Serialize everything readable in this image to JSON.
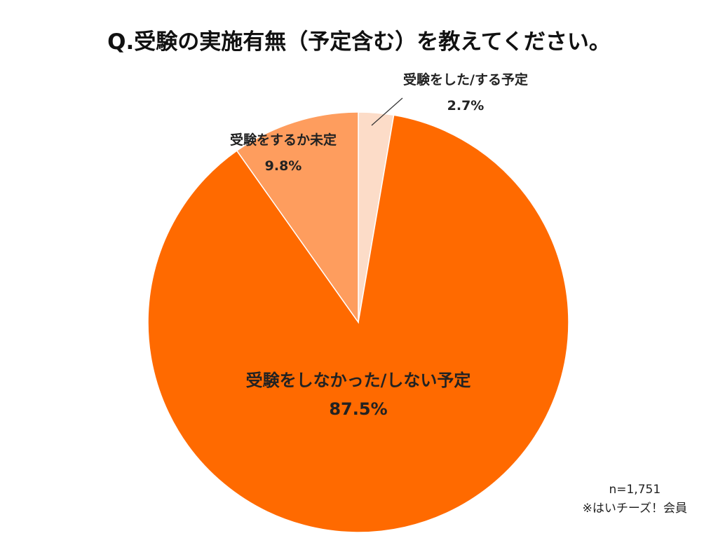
{
  "chart_data": {
    "type": "pie",
    "title": "Q.受験の実施有無（予定含む）を教えてください。",
    "slices": [
      {
        "label": "受験をした/する予定",
        "value": 2.7,
        "value_label": "2.7%",
        "color": "#fcdcc8"
      },
      {
        "label": "受験をしなかった/しない予定",
        "value": 87.5,
        "value_label": "87.5%",
        "color": "#ff6a00"
      },
      {
        "label": "受験をするか未定",
        "value": 9.8,
        "value_label": "9.8%",
        "color": "#fe9d5e"
      }
    ]
  },
  "footnote": {
    "sample_size": "n=1,751",
    "source": "※はいチーズ！会員"
  }
}
